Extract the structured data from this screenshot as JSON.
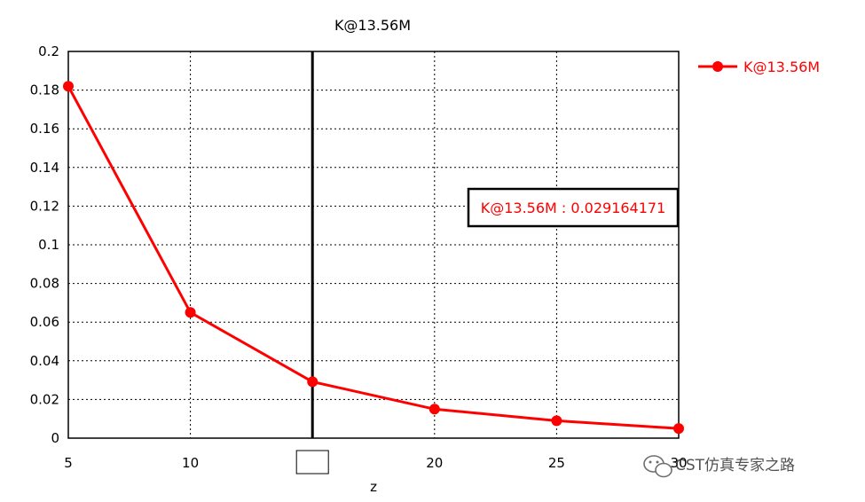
{
  "chart_data": {
    "type": "line",
    "title": "K@13.56M",
    "xlabel": "z",
    "ylabel": "",
    "x": [
      5,
      10,
      15,
      20,
      25,
      30
    ],
    "series": [
      {
        "name": "K@13.56M",
        "values": [
          0.182,
          0.065,
          0.029164171,
          0.015,
          0.009,
          0.005
        ]
      }
    ],
    "xlim": [
      5,
      30
    ],
    "ylim": [
      0,
      0.2
    ],
    "xticks": [
      "5",
      "10",
      "15",
      "20",
      "25",
      "30"
    ],
    "yticks": [
      "0",
      "0.02",
      "0.04",
      "0.06",
      "0.08",
      "0.1",
      "0.12",
      "0.14",
      "0.16",
      "0.18",
      "0.2"
    ],
    "grid": true,
    "legend_position": "top-right",
    "marker": {
      "x": 15,
      "label": "K@13.56M : 0.029164171"
    },
    "colors": {
      "series": "#ff0000",
      "axis": "#000000",
      "grid": "#000000"
    }
  },
  "watermark": {
    "text": "CST仿真专家之路"
  }
}
